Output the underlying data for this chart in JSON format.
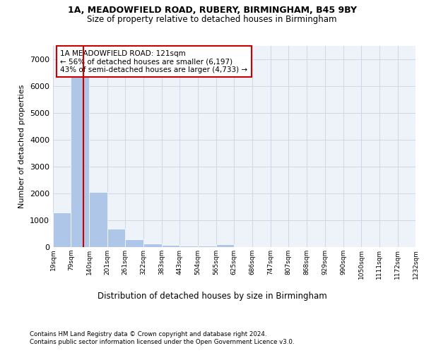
{
  "title1": "1A, MEADOWFIELD ROAD, RUBERY, BIRMINGHAM, B45 9BY",
  "title2": "Size of property relative to detached houses in Birmingham",
  "xlabel": "Distribution of detached houses by size in Birmingham",
  "ylabel": "Number of detached properties",
  "footnote1": "Contains HM Land Registry data © Crown copyright and database right 2024.",
  "footnote2": "Contains public sector information licensed under the Open Government Licence v3.0.",
  "annotation_line1": "1A MEADOWFIELD ROAD: 121sqm",
  "annotation_line2": "← 56% of detached houses are smaller (6,197)",
  "annotation_line3": "43% of semi-detached houses are larger (4,733) →",
  "property_size": 121,
  "bar_edges": [
    19,
    79,
    140,
    201,
    261,
    322,
    383,
    443,
    504,
    565,
    625,
    686,
    747,
    807,
    868,
    929,
    990,
    1050,
    1111,
    1172,
    1232
  ],
  "bar_heights": [
    1300,
    6550,
    2060,
    680,
    290,
    120,
    75,
    60,
    55,
    100,
    0,
    0,
    0,
    0,
    0,
    0,
    0,
    0,
    0,
    0
  ],
  "bar_color": "#aec6e8",
  "red_line_color": "#cc0000",
  "grid_color": "#d0d8e8",
  "background_color": "#eef2f9",
  "annotation_box_edge": "#cc0000",
  "ylim": [
    0,
    7500
  ],
  "yticks": [
    0,
    1000,
    2000,
    3000,
    4000,
    5000,
    6000,
    7000
  ]
}
